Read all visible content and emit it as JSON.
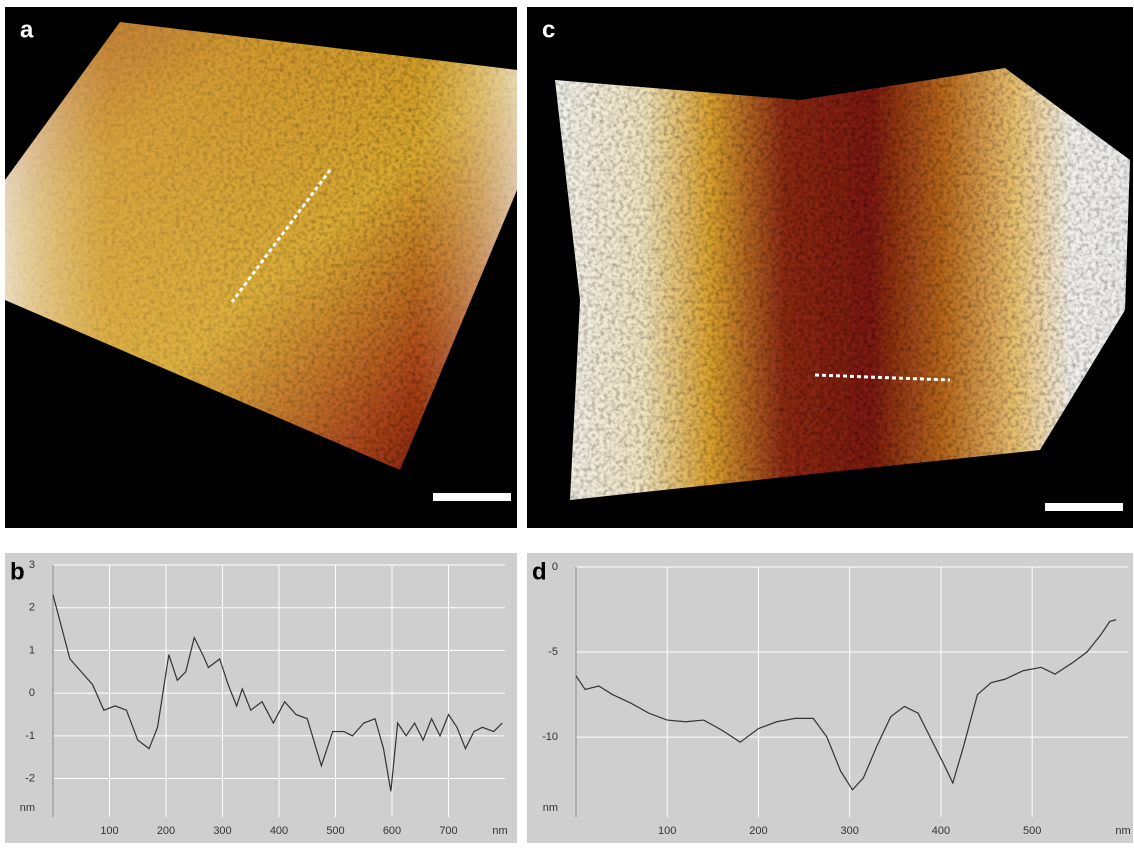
{
  "images": [
    {
      "label": "a"
    },
    {
      "label": "c"
    }
  ],
  "chart_data": [
    {
      "type": "line",
      "panel_label": "b",
      "x_label": "nm",
      "y_label": "nm",
      "x": [
        0,
        10,
        20,
        30,
        50,
        70,
        90,
        110,
        130,
        150,
        170,
        185,
        205,
        220,
        235,
        250,
        265,
        275,
        295,
        310,
        325,
        335,
        350,
        370,
        390,
        410,
        430,
        450,
        475,
        495,
        515,
        530,
        550,
        570,
        585,
        598,
        610,
        625,
        640,
        655,
        670,
        685,
        700,
        715,
        730,
        745,
        760,
        780,
        795
      ],
      "series": [
        {
          "color": "#333333",
          "values": [
            2.3,
            1.8,
            1.3,
            0.8,
            0.5,
            0.2,
            -0.4,
            -0.3,
            -0.4,
            -1.1,
            -1.3,
            -0.8,
            0.9,
            0.3,
            0.5,
            1.3,
            0.9,
            0.6,
            0.8,
            0.2,
            -0.3,
            0.1,
            -0.4,
            -0.2,
            -0.7,
            -0.2,
            -0.5,
            -0.6,
            -1.7,
            -0.9,
            -0.9,
            -1.0,
            -0.7,
            -0.6,
            -1.3,
            -2.3,
            -0.7,
            -1.0,
            -0.7,
            -1.1,
            -0.6,
            -1.0,
            -0.5,
            -0.8,
            -1.3,
            -0.9,
            -0.8,
            -0.9,
            -0.7
          ]
        }
      ],
      "xlim": [
        0,
        800
      ],
      "xticks": [
        100,
        200,
        300,
        400,
        500,
        600,
        700
      ],
      "ylim": [
        -2.9,
        3
      ],
      "yticks": [
        -2,
        -1,
        0,
        1,
        2,
        3
      ],
      "grid": true
    },
    {
      "type": "line",
      "panel_label": "d",
      "x_label": "nm",
      "y_label": "nm",
      "x": [
        0,
        10,
        25,
        40,
        60,
        80,
        100,
        120,
        140,
        160,
        180,
        200,
        220,
        240,
        260,
        275,
        290,
        303,
        315,
        330,
        345,
        360,
        375,
        390,
        405,
        413,
        425,
        440,
        455,
        470,
        490,
        510,
        525,
        545,
        560,
        575,
        585,
        592
      ],
      "series": [
        {
          "color": "#333333",
          "values": [
            -6.4,
            -7.2,
            -7.0,
            -7.5,
            -8.0,
            -8.6,
            -9.0,
            -9.1,
            -9.0,
            -9.6,
            -10.3,
            -9.5,
            -9.1,
            -8.9,
            -8.9,
            -10.0,
            -12.0,
            -13.1,
            -12.4,
            -10.5,
            -8.8,
            -8.2,
            -8.6,
            -10.2,
            -11.8,
            -12.7,
            -10.5,
            -7.5,
            -6.8,
            -6.6,
            -6.1,
            -5.9,
            -6.3,
            -5.6,
            -5.0,
            -4.0,
            -3.2,
            -3.1
          ]
        }
      ],
      "xlim": [
        0,
        605
      ],
      "xticks": [
        100,
        200,
        300,
        400,
        500
      ],
      "ylim": [
        -14.7,
        0
      ],
      "yticks": [
        -10,
        -5,
        0
      ],
      "grid": true
    }
  ]
}
